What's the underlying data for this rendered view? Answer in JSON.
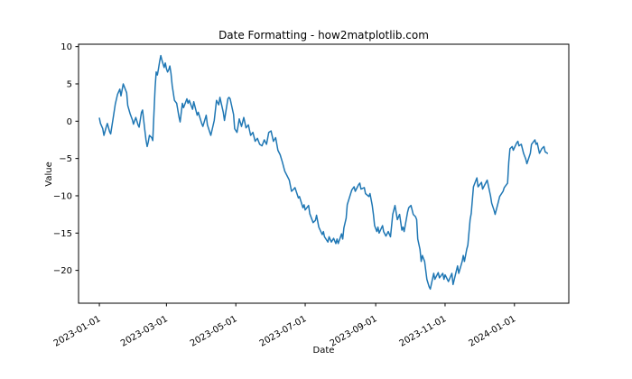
{
  "title": "Date Formatting - how2matplotlib.com",
  "chart_data": {
    "type": "line",
    "title": "Date Formatting - how2matplotlib.com",
    "xlabel": "Date",
    "ylabel": "Value",
    "grid": false,
    "legend": "none",
    "background_color": "#ffffff",
    "line_color": "#1f77b4",
    "spine_color": "#000000",
    "x_start_date": "2023-01-01",
    "x_tick_labels": [
      "2023-01-01",
      "2023-03-01",
      "2023-05-01",
      "2023-07-01",
      "2023-09-01",
      "2023-11-01",
      "2024-01-01"
    ],
    "x_tick_days": [
      0,
      59,
      120,
      181,
      243,
      304,
      365
    ],
    "y_tick_labels": [
      "10",
      "5",
      "0",
      "−5",
      "−10",
      "−15",
      "−20"
    ],
    "y_tick_values": [
      10,
      5,
      0,
      -5,
      -10,
      -15,
      -20
    ],
    "xlim_days": [
      -18.3,
      412.8
    ],
    "ylim": [
      -24.4,
      10.32
    ],
    "series": [
      {
        "name": "Value",
        "x_unit": "days since 2023-01-01",
        "points": [
          [
            0,
            0.4
          ],
          [
            1,
            -0.3
          ],
          [
            3,
            -1.0
          ],
          [
            4,
            -1.9
          ],
          [
            6,
            -0.8
          ],
          [
            7,
            -0.3
          ],
          [
            9,
            -1.4
          ],
          [
            10,
            -1.7
          ],
          [
            12,
            0.3
          ],
          [
            14,
            2.3
          ],
          [
            16,
            3.6
          ],
          [
            18,
            4.3
          ],
          [
            19,
            3.4
          ],
          [
            21,
            5.0
          ],
          [
            22,
            4.6
          ],
          [
            24,
            3.8
          ],
          [
            25,
            2.1
          ],
          [
            27,
            1.0
          ],
          [
            29,
            0.2
          ],
          [
            30,
            -0.4
          ],
          [
            32,
            0.5
          ],
          [
            34,
            -0.5
          ],
          [
            35,
            -0.8
          ],
          [
            37,
            1.2
          ],
          [
            38,
            1.5
          ],
          [
            40,
            -1.2
          ],
          [
            41,
            -2.5
          ],
          [
            42,
            -3.4
          ],
          [
            43,
            -2.8
          ],
          [
            44,
            -1.9
          ],
          [
            46,
            -2.2
          ],
          [
            47,
            -2.6
          ],
          [
            48,
            1.0
          ],
          [
            49,
            4.5
          ],
          [
            50,
            6.6
          ],
          [
            51,
            6.2
          ],
          [
            52,
            7.0
          ],
          [
            53,
            8.0
          ],
          [
            54,
            8.8
          ],
          [
            55,
            8.2
          ],
          [
            57,
            7.2
          ],
          [
            58,
            7.8
          ],
          [
            59,
            7.0
          ],
          [
            60,
            6.6
          ],
          [
            61,
            6.9
          ],
          [
            62,
            7.4
          ],
          [
            63,
            6.4
          ],
          [
            64,
            4.8
          ],
          [
            66,
            2.8
          ],
          [
            68,
            2.4
          ],
          [
            70,
            0.6
          ],
          [
            71,
            -0.1
          ],
          [
            73,
            2.4
          ],
          [
            74,
            1.8
          ],
          [
            77,
            3.0
          ],
          [
            78,
            2.4
          ],
          [
            79,
            2.8
          ],
          [
            82,
            1.6
          ],
          [
            83,
            2.6
          ],
          [
            86,
            0.8
          ],
          [
            87,
            1.2
          ],
          [
            90,
            -0.3
          ],
          [
            91,
            -0.7
          ],
          [
            94,
            0.8
          ],
          [
            95,
            -0.5
          ],
          [
            98,
            -1.9
          ],
          [
            101,
            0.1
          ],
          [
            103,
            2.8
          ],
          [
            105,
            2.2
          ],
          [
            106,
            3.2
          ],
          [
            109,
            1.2
          ],
          [
            110,
            0.1
          ],
          [
            113,
            3.0
          ],
          [
            114,
            3.2
          ],
          [
            115,
            3.0
          ],
          [
            118,
            0.9
          ],
          [
            119,
            -1.0
          ],
          [
            121,
            -1.5
          ],
          [
            123,
            0.3
          ],
          [
            125,
            -0.7
          ],
          [
            127,
            0.5
          ],
          [
            129,
            -0.9
          ],
          [
            131,
            -0.5
          ],
          [
            133,
            -1.9
          ],
          [
            135,
            -1.5
          ],
          [
            137,
            -2.7
          ],
          [
            139,
            -2.3
          ],
          [
            141,
            -3.1
          ],
          [
            143,
            -3.3
          ],
          [
            145,
            -2.5
          ],
          [
            147,
            -3.1
          ],
          [
            149,
            -1.5
          ],
          [
            151,
            -1.3
          ],
          [
            153,
            -2.7
          ],
          [
            155,
            -2.2
          ],
          [
            157,
            -3.9
          ],
          [
            159,
            -4.5
          ],
          [
            161,
            -5.5
          ],
          [
            163,
            -6.7
          ],
          [
            165,
            -7.3
          ],
          [
            167,
            -7.9
          ],
          [
            169,
            -9.4
          ],
          [
            171,
            -9.1
          ],
          [
            172,
            -8.9
          ],
          [
            175,
            -10.3
          ],
          [
            176,
            -10.1
          ],
          [
            179,
            -11.6
          ],
          [
            180,
            -11.2
          ],
          [
            181,
            -11.9
          ],
          [
            184,
            -11.3
          ],
          [
            185,
            -12.4
          ],
          [
            188,
            -13.6
          ],
          [
            190,
            -13.3
          ],
          [
            191,
            -12.6
          ],
          [
            193,
            -14.2
          ],
          [
            196,
            -15.2
          ],
          [
            197,
            -14.8
          ],
          [
            198,
            -15.5
          ],
          [
            201,
            -16.2
          ],
          [
            202,
            -15.5
          ],
          [
            204,
            -16.2
          ],
          [
            206,
            -15.7
          ],
          [
            208,
            -16.4
          ],
          [
            209,
            -15.8
          ],
          [
            210,
            -16.4
          ],
          [
            213,
            -15.1
          ],
          [
            214,
            -15.8
          ],
          [
            215,
            -14.3
          ],
          [
            217,
            -13.0
          ],
          [
            218,
            -11.2
          ],
          [
            221,
            -9.7
          ],
          [
            222,
            -9.2
          ],
          [
            224,
            -8.8
          ],
          [
            225,
            -9.4
          ],
          [
            228,
            -8.5
          ],
          [
            229,
            -8.3
          ],
          [
            230,
            -9.1
          ],
          [
            233,
            -8.9
          ],
          [
            234,
            -9.7
          ],
          [
            237,
            -10.1
          ],
          [
            238,
            -9.7
          ],
          [
            240,
            -11.3
          ],
          [
            241,
            -12.5
          ],
          [
            242,
            -14.0
          ],
          [
            244,
            -14.8
          ],
          [
            245,
            -14.2
          ],
          [
            246,
            -15.0
          ],
          [
            249,
            -14.0
          ],
          [
            250,
            -14.8
          ],
          [
            252,
            -15.4
          ],
          [
            254,
            -14.8
          ],
          [
            256,
            -15.5
          ],
          [
            258,
            -12.5
          ],
          [
            260,
            -11.3
          ],
          [
            262,
            -13.2
          ],
          [
            264,
            -12.5
          ],
          [
            266,
            -14.6
          ],
          [
            267,
            -14.2
          ],
          [
            268,
            -14.8
          ],
          [
            271,
            -12.2
          ],
          [
            272,
            -11.6
          ],
          [
            274,
            -11.3
          ],
          [
            276,
            -12.5
          ],
          [
            278,
            -12.8
          ],
          [
            279,
            -13.2
          ],
          [
            280,
            -15.8
          ],
          [
            282,
            -17.2
          ],
          [
            283,
            -18.8
          ],
          [
            284,
            -18.0
          ],
          [
            286,
            -18.8
          ],
          [
            288,
            -21.2
          ],
          [
            290,
            -22.2
          ],
          [
            291,
            -22.5
          ],
          [
            294,
            -20.4
          ],
          [
            295,
            -21.2
          ],
          [
            298,
            -20.3
          ],
          [
            299,
            -21.0
          ],
          [
            302,
            -20.4
          ],
          [
            303,
            -21.2
          ],
          [
            304,
            -20.6
          ],
          [
            307,
            -21.5
          ],
          [
            310,
            -20.4
          ],
          [
            311,
            -21.9
          ],
          [
            314,
            -20.0
          ],
          [
            315,
            -19.4
          ],
          [
            316,
            -20.4
          ],
          [
            319,
            -18.8
          ],
          [
            320,
            -18.0
          ],
          [
            321,
            -18.8
          ],
          [
            323,
            -17.2
          ],
          [
            324,
            -16.6
          ],
          [
            326,
            -13.2
          ],
          [
            327,
            -12.4
          ],
          [
            329,
            -8.8
          ],
          [
            332,
            -7.6
          ],
          [
            333,
            -8.8
          ],
          [
            336,
            -8.2
          ],
          [
            337,
            -9.1
          ],
          [
            340,
            -8.2
          ],
          [
            341,
            -7.9
          ],
          [
            344,
            -10.0
          ],
          [
            345,
            -11.0
          ],
          [
            347,
            -11.9
          ],
          [
            348,
            -12.5
          ],
          [
            351,
            -10.7
          ],
          [
            352,
            -10.1
          ],
          [
            355,
            -9.4
          ],
          [
            356,
            -8.9
          ],
          [
            359,
            -8.3
          ],
          [
            360,
            -5.5
          ],
          [
            361,
            -3.7
          ],
          [
            363,
            -3.4
          ],
          [
            364,
            -3.9
          ],
          [
            367,
            -2.9
          ],
          [
            368,
            -2.7
          ],
          [
            369,
            -3.3
          ],
          [
            371,
            -3.1
          ],
          [
            373,
            -4.3
          ],
          [
            375,
            -5.1
          ],
          [
            376,
            -5.7
          ],
          [
            379,
            -4.3
          ],
          [
            380,
            -3.1
          ],
          [
            383,
            -2.5
          ],
          [
            384,
            -3.1
          ],
          [
            385,
            -2.9
          ],
          [
            387,
            -4.3
          ],
          [
            389,
            -3.7
          ],
          [
            391,
            -3.4
          ],
          [
            392,
            -4.1
          ],
          [
            394,
            -4.3
          ]
        ]
      }
    ]
  }
}
